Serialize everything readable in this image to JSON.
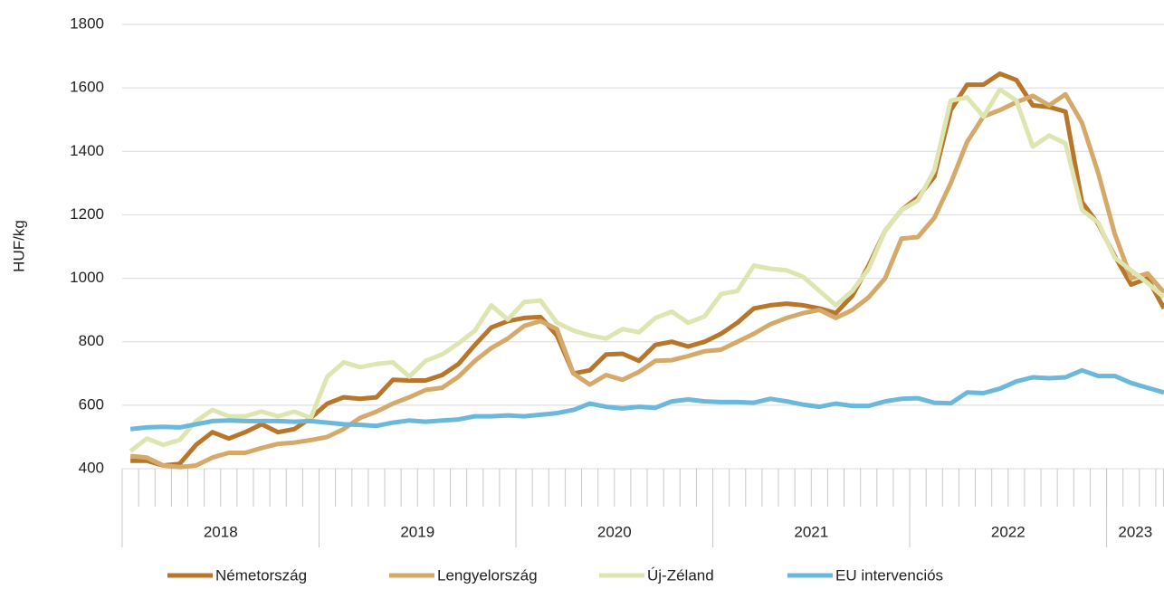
{
  "chart_data": {
    "type": "line",
    "y_label": "HUF/kg",
    "groups": [
      {
        "label": "2018",
        "count": 12
      },
      {
        "label": "2019",
        "count": 12
      },
      {
        "label": "2020",
        "count": 12
      },
      {
        "label": "2021",
        "count": 12
      },
      {
        "label": "2022",
        "count": 12
      },
      {
        "label": "2023",
        "count": 4
      }
    ],
    "ylim": [
      400,
      1800
    ],
    "yticks": [
      400,
      600,
      800,
      1000,
      1200,
      1400,
      1600,
      1800
    ],
    "grid": true,
    "legend": "bottom",
    "series": [
      {
        "name": "Németország",
        "color": "#b8762a",
        "values": [
          425,
          425,
          410,
          415,
          475,
          515,
          495,
          515,
          540,
          515,
          525,
          560,
          605,
          625,
          620,
          625,
          680,
          678,
          678,
          695,
          730,
          790,
          845,
          865,
          875,
          878,
          820,
          700,
          710,
          760,
          762,
          740,
          790,
          800,
          785,
          800,
          825,
          860,
          905,
          915,
          920,
          915,
          905,
          890,
          945,
          1040,
          1150,
          1215,
          1255,
          1320,
          1530,
          1610,
          1610,
          1645,
          1625,
          1545,
          1540,
          1525,
          1240,
          1170,
          1070,
          980,
          1000,
          905
        ]
      },
      {
        "name": "Lengyelország",
        "color": "#d4a96a",
        "values": [
          440,
          435,
          410,
          405,
          410,
          435,
          450,
          450,
          465,
          478,
          482,
          490,
          500,
          525,
          560,
          580,
          605,
          625,
          648,
          655,
          690,
          740,
          780,
          810,
          850,
          865,
          840,
          700,
          665,
          695,
          680,
          705,
          740,
          742,
          755,
          770,
          775,
          800,
          825,
          855,
          875,
          890,
          900,
          875,
          900,
          940,
          1000,
          1125,
          1130,
          1190,
          1300,
          1430,
          1510,
          1530,
          1555,
          1575,
          1545,
          1580,
          1490,
          1330,
          1140,
          1000,
          1015,
          955
        ]
      },
      {
        "name": "Új-Zéland",
        "color": "#dfe5b0",
        "values": [
          455,
          495,
          475,
          490,
          550,
          585,
          565,
          565,
          580,
          565,
          580,
          560,
          690,
          735,
          720,
          730,
          735,
          690,
          740,
          760,
          795,
          835,
          915,
          870,
          925,
          930,
          860,
          835,
          820,
          810,
          840,
          830,
          875,
          895,
          860,
          880,
          950,
          960,
          1040,
          1030,
          1025,
          1005,
          960,
          915,
          960,
          1030,
          1150,
          1215,
          1245,
          1340,
          1560,
          1570,
          1510,
          1595,
          1560,
          1415,
          1450,
          1425,
          1215,
          1175,
          1065,
          1025,
          985,
          940
        ]
      },
      {
        "name": "EU intervenciós",
        "color": "#6bb8dc",
        "values": [
          525,
          530,
          532,
          530,
          540,
          550,
          552,
          550,
          550,
          550,
          548,
          550,
          545,
          540,
          538,
          535,
          545,
          552,
          548,
          552,
          555,
          565,
          565,
          568,
          565,
          570,
          575,
          585,
          605,
          595,
          590,
          595,
          592,
          612,
          618,
          612,
          610,
          610,
          608,
          620,
          612,
          602,
          595,
          605,
          598,
          598,
          612,
          620,
          622,
          608,
          606,
          640,
          638,
          652,
          675,
          688,
          685,
          688,
          710,
          692,
          692,
          670,
          655,
          640
        ]
      }
    ]
  }
}
